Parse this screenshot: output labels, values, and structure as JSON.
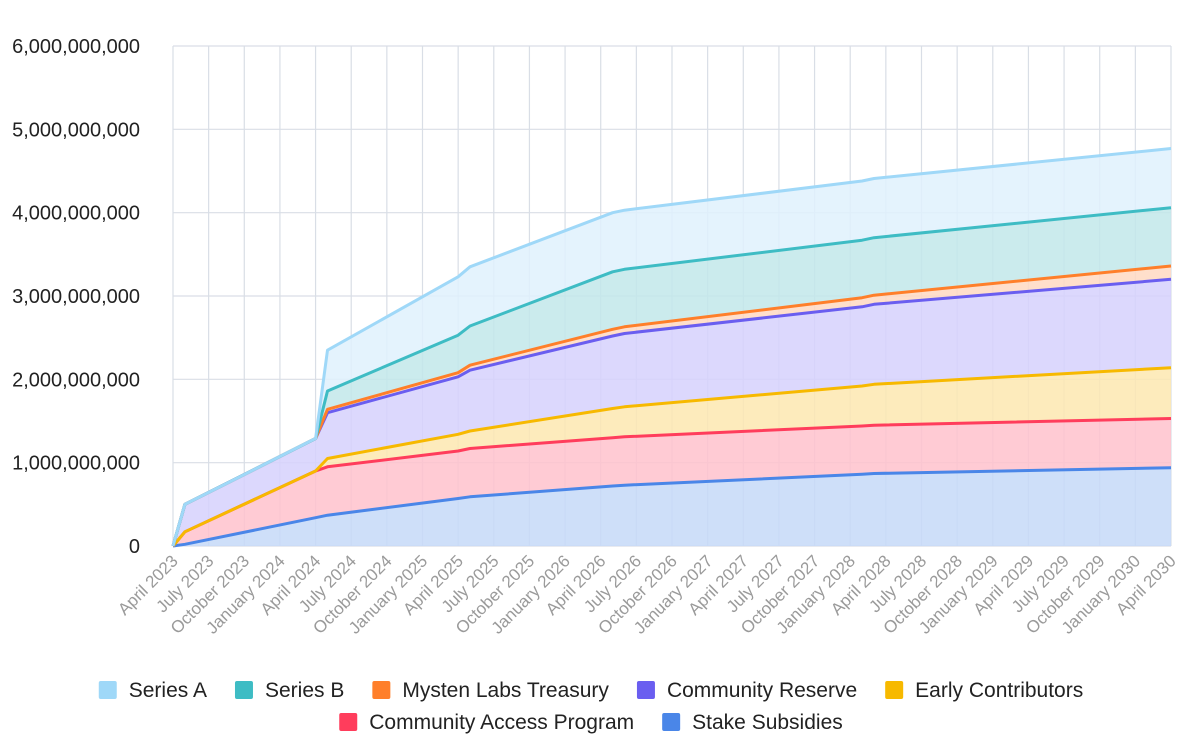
{
  "chart_data": {
    "type": "area",
    "stacked": true,
    "ylim": [
      0,
      6000000000
    ],
    "y_ticks": [
      {
        "value": 0,
        "label": "0"
      },
      {
        "value": 1000000000,
        "label": "1,000,000,000"
      },
      {
        "value": 2000000000,
        "label": "2,000,000,000"
      },
      {
        "value": 3000000000,
        "label": "3,000,000,000"
      },
      {
        "value": 4000000000,
        "label": "4,000,000,000"
      },
      {
        "value": 5000000000,
        "label": "5,000,000,000"
      },
      {
        "value": 6000000000,
        "label": "6,000,000,000"
      }
    ],
    "x_ticks": [
      "April 2023",
      "July 2023",
      "October 2023",
      "January 2024",
      "April 2024",
      "July 2024",
      "October 2024",
      "January 2025",
      "April 2025",
      "July 2025",
      "October 2025",
      "January 2026",
      "April 2026",
      "July 2026",
      "October 2026",
      "January 2027",
      "April 2027",
      "July 2027",
      "October 2027",
      "January 2028",
      "April 2028",
      "July 2028",
      "October 2028",
      "January 2029",
      "April 2029",
      "July 2029",
      "October 2029",
      "January 2030",
      "April 2030"
    ],
    "grid": true,
    "legend_position": "bottom",
    "x": [
      "2023-04",
      "2023-05",
      "2024-04",
      "2024-05",
      "2025-04",
      "2025-05",
      "2026-05",
      "2026-06",
      "2028-02",
      "2028-03",
      "2030-04"
    ],
    "series": [
      {
        "name": "Stake Subsidies",
        "color": "#4a86e8",
        "fill": "#c6d9f8",
        "values": [
          0,
          20000000,
          340000000,
          370000000,
          570000000,
          590000000,
          720000000,
          730000000,
          860000000,
          870000000,
          940000000
        ]
      },
      {
        "name": "Community Access Program",
        "color": "#ff3d5c",
        "fill": "#ffc2cd",
        "values": [
          0,
          150000000,
          560000000,
          580000000,
          570000000,
          580000000,
          580000000,
          580000000,
          580000000,
          580000000,
          590000000
        ]
      },
      {
        "name": "Early Contributors",
        "color": "#f7b900",
        "fill": "#fde8b0",
        "values": [
          0,
          0,
          0,
          100000000,
          200000000,
          210000000,
          350000000,
          360000000,
          480000000,
          490000000,
          610000000
        ]
      },
      {
        "name": "Community Reserve",
        "color": "#6a5ef0",
        "fill": "#d6d1fd",
        "values": [
          0,
          330000000,
          390000000,
          550000000,
          690000000,
          730000000,
          870000000,
          880000000,
          950000000,
          960000000,
          1060000000
        ]
      },
      {
        "name": "Mysten Labs Treasury",
        "color": "#ff7f2a",
        "fill": "#ffd9c2",
        "values": [
          0,
          0,
          0,
          40000000,
          50000000,
          60000000,
          80000000,
          80000000,
          110000000,
          110000000,
          160000000
        ]
      },
      {
        "name": "Series B",
        "color": "#3ebcc4",
        "fill": "#c2e8ea",
        "values": [
          0,
          0,
          0,
          220000000,
          450000000,
          470000000,
          690000000,
          690000000,
          690000000,
          690000000,
          700000000
        ]
      },
      {
        "name": "Series A",
        "color": "#9fd8f8",
        "fill": "#dff1fd",
        "values": [
          0,
          0,
          0,
          490000000,
          700000000,
          710000000,
          710000000,
          710000000,
          710000000,
          710000000,
          710000000
        ]
      }
    ]
  },
  "legend": {
    "rows": [
      [
        "Series A",
        "Series B",
        "Mysten Labs Treasury",
        "Community Reserve",
        "Early Contributors"
      ],
      [
        "Community Access Program",
        "Stake Subsidies"
      ]
    ]
  }
}
